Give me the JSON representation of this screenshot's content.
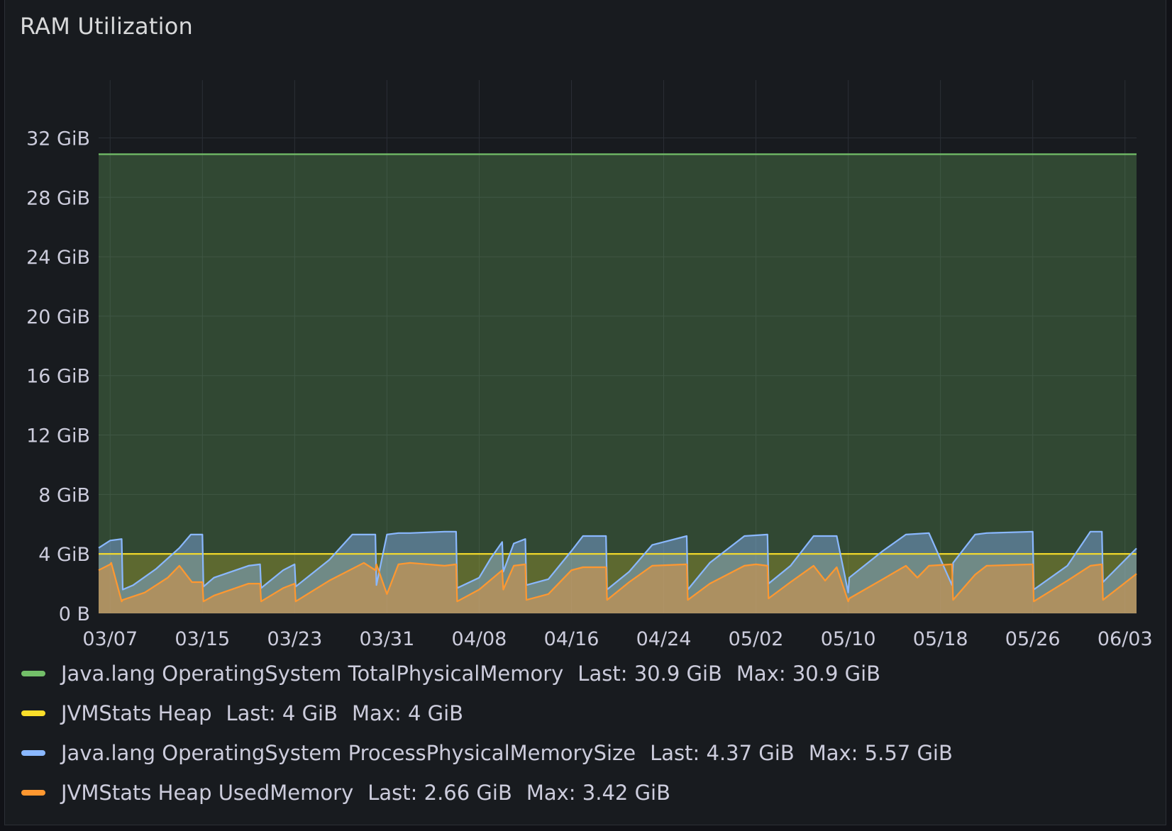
{
  "panel": {
    "title": "RAM Utilization"
  },
  "chart_data": {
    "type": "area",
    "title": "RAM Utilization",
    "x_ticks": [
      "03/07",
      "03/15",
      "03/23",
      "03/31",
      "04/08",
      "04/16",
      "04/24",
      "05/02",
      "05/10",
      "05/18",
      "05/26",
      "06/03"
    ],
    "x_range": [
      "03/06",
      "06/04"
    ],
    "y_ticks": [
      "0 B",
      "4 GiB",
      "8 GiB",
      "12 GiB",
      "16 GiB",
      "20 GiB",
      "24 GiB",
      "28 GiB",
      "32 GiB"
    ],
    "ylim": [
      0,
      34.6
    ],
    "y_unit": "GiB",
    "grid": true,
    "legend_position": "bottom",
    "series": [
      {
        "name": "Java.lang OperatingSystem TotalPhysicalMemory",
        "color": "#73bf69",
        "last": "30.9 GiB",
        "max": "30.9 GiB",
        "x": [
          "03/06",
          "06/04"
        ],
        "values": [
          30.9,
          30.9
        ]
      },
      {
        "name": "JVMStats Heap",
        "color": "#fade2a",
        "last": "4 GiB",
        "max": "4 GiB",
        "x": [
          "03/06",
          "06/04"
        ],
        "values": [
          4,
          4
        ]
      },
      {
        "name": "Java.lang OperatingSystem ProcessPhysicalMemorySize",
        "color": "#8ab8ff",
        "last": "4.37 GiB",
        "max": "5.57 GiB",
        "x": [
          "03/06",
          "03/07",
          "03/08",
          "03/08",
          "03/09",
          "03/11",
          "03/13",
          "03/14",
          "03/15",
          "03/15",
          "03/16",
          "03/19",
          "03/20",
          "03/20",
          "03/22",
          "03/23",
          "03/23",
          "03/26",
          "03/28",
          "03/29",
          "03/30",
          "03/30",
          "03/31",
          "04/01",
          "04/02",
          "04/05",
          "04/06",
          "04/06",
          "04/08",
          "04/09",
          "04/10",
          "04/10",
          "04/11",
          "04/12",
          "04/12",
          "04/14",
          "04/16",
          "04/17",
          "04/19",
          "04/19",
          "04/21",
          "04/23",
          "04/26",
          "04/26",
          "04/28",
          "05/01",
          "05/03",
          "05/03",
          "05/05",
          "05/07",
          "05/08",
          "05/09",
          "05/10",
          "05/10",
          "05/13",
          "05/15",
          "05/17",
          "05/19",
          "05/19",
          "05/21",
          "05/22",
          "05/26",
          "05/26",
          "05/29",
          "05/31",
          "06/01",
          "06/01",
          "06/04"
        ],
        "values": [
          4.4,
          4.9,
          5.0,
          1.6,
          1.9,
          3.0,
          4.4,
          5.3,
          5.3,
          1.8,
          2.4,
          3.2,
          3.3,
          1.7,
          2.9,
          3.3,
          1.8,
          3.6,
          5.3,
          5.3,
          5.3,
          1.9,
          5.3,
          5.4,
          5.4,
          5.5,
          5.5,
          1.7,
          2.4,
          3.7,
          4.8,
          2.8,
          4.7,
          5.0,
          1.9,
          2.3,
          4.2,
          5.2,
          5.2,
          1.6,
          2.8,
          4.6,
          5.2,
          1.6,
          3.4,
          5.2,
          5.3,
          2.0,
          3.2,
          5.2,
          5.2,
          5.2,
          1.4,
          2.4,
          4.2,
          5.3,
          5.4,
          1.9,
          3.4,
          5.3,
          5.4,
          5.5,
          1.6,
          3.2,
          5.5,
          5.5,
          2.1,
          4.37
        ]
      },
      {
        "name": "JVMStats Heap UsedMemory",
        "color": "#ff9830",
        "last": "2.66 GiB",
        "max": "3.42 GiB",
        "x": [
          "03/06",
          "03/07",
          "03/07",
          "03/08",
          "03/08",
          "03/10",
          "03/12",
          "03/13",
          "03/14",
          "03/14",
          "03/15",
          "03/15",
          "03/16",
          "03/19",
          "03/20",
          "03/20",
          "03/22",
          "03/23",
          "03/23",
          "03/26",
          "03/29",
          "03/30",
          "03/30",
          "03/31",
          "04/01",
          "04/02",
          "04/05",
          "04/06",
          "04/06",
          "04/08",
          "04/10",
          "04/10",
          "04/11",
          "04/12",
          "04/12",
          "04/14",
          "04/16",
          "04/17",
          "04/19",
          "04/19",
          "04/21",
          "04/23",
          "04/26",
          "04/26",
          "04/28",
          "05/01",
          "05/02",
          "05/03",
          "05/03",
          "05/05",
          "05/07",
          "05/08",
          "05/09",
          "05/10",
          "05/10",
          "05/13",
          "05/15",
          "05/16",
          "05/17",
          "05/19",
          "05/19",
          "05/21",
          "05/22",
          "05/26",
          "05/26",
          "05/29",
          "05/31",
          "06/01",
          "06/01",
          "06/04"
        ],
        "values": [
          2.9,
          3.3,
          3.4,
          0.8,
          0.9,
          1.4,
          2.4,
          3.2,
          2.2,
          2.1,
          2.1,
          0.8,
          1.2,
          2.0,
          2.0,
          0.8,
          1.7,
          2.0,
          0.8,
          2.2,
          3.4,
          2.9,
          3.3,
          1.3,
          3.3,
          3.4,
          3.2,
          3.3,
          0.8,
          1.6,
          2.9,
          1.6,
          3.2,
          3.3,
          0.9,
          1.3,
          2.9,
          3.1,
          3.1,
          0.9,
          2.1,
          3.2,
          3.3,
          0.9,
          2.0,
          3.2,
          3.3,
          3.2,
          1.0,
          2.1,
          3.2,
          2.2,
          3.1,
          0.8,
          1.0,
          2.3,
          3.2,
          2.4,
          3.2,
          3.3,
          0.9,
          2.6,
          3.2,
          3.3,
          0.8,
          2.2,
          3.2,
          3.3,
          0.9,
          2.66
        ]
      }
    ]
  }
}
